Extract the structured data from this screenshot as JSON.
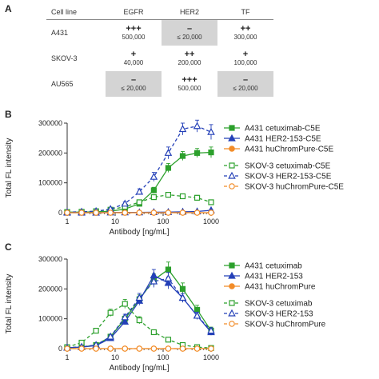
{
  "panel_a": {
    "letter": "A",
    "headers": [
      "Cell line",
      "EGFR",
      "HER2",
      "TF"
    ],
    "rows": [
      {
        "cell_line": "A431",
        "cells": [
          {
            "symbol": "+++",
            "value": "500,000",
            "shaded": false
          },
          {
            "symbol": "–",
            "value": "≤ 20,000",
            "shaded": true
          },
          {
            "symbol": "++",
            "value": "300,000",
            "shaded": false
          }
        ]
      },
      {
        "cell_line": "SKOV-3",
        "cells": [
          {
            "symbol": "+",
            "value": "40,000",
            "shaded": false
          },
          {
            "symbol": "++",
            "value": "200,000",
            "shaded": false
          },
          {
            "symbol": "+",
            "value": "100,000",
            "shaded": false
          }
        ]
      },
      {
        "cell_line": "AU565",
        "cells": [
          {
            "symbol": "–",
            "value": "≤ 20,000",
            "shaded": true
          },
          {
            "symbol": "+++",
            "value": "500,000",
            "shaded": false
          },
          {
            "symbol": "–",
            "value": "≤ 20,000",
            "shaded": true
          }
        ]
      }
    ]
  },
  "colors": {
    "green": "#2ca02c",
    "blue": "#2440b8",
    "orange": "#f28c28"
  },
  "chart_data": [
    {
      "panel": "B",
      "type": "line",
      "xlabel": "Antibody [ng/mL]",
      "ylabel": "Total FL intensity",
      "x_scale": "log",
      "xlim": [
        1,
        1000
      ],
      "ylim": [
        0,
        300000
      ],
      "x_ticks": [
        1,
        10,
        100,
        1000
      ],
      "x_tick_labels": [
        "1",
        "10",
        "100",
        "1000"
      ],
      "y_ticks": [
        0,
        100000,
        200000,
        300000
      ],
      "y_tick_labels": [
        "0",
        "100000",
        "200000",
        "300000"
      ],
      "x": [
        1,
        2,
        4,
        8,
        16,
        32,
        64,
        128,
        256,
        512,
        1000
      ],
      "legend_position": "right",
      "series": [
        {
          "name": "A431 cetuximab-C5E",
          "color": "green",
          "marker": "square",
          "filled": true,
          "dashed": false,
          "values": [
            2000,
            2000,
            3000,
            5000,
            12000,
            30000,
            75000,
            150000,
            190000,
            200000,
            202000
          ],
          "errors": [
            1000,
            1000,
            1000,
            2000,
            3000,
            6000,
            10000,
            15000,
            15000,
            15000,
            18000
          ]
        },
        {
          "name": "A431 HER2-153-C5E",
          "color": "blue",
          "marker": "triangle",
          "filled": true,
          "dashed": false,
          "values": [
            0,
            0,
            0,
            500,
            1000,
            1000,
            1500,
            2000,
            3000,
            4000,
            8000
          ],
          "errors": [
            500,
            500,
            500,
            500,
            500,
            500,
            1000,
            1000,
            1000,
            2000,
            3000
          ]
        },
        {
          "name": "A431 huChromPure-C5E",
          "color": "orange",
          "marker": "circle",
          "filled": true,
          "dashed": false,
          "values": [
            0,
            0,
            0,
            0,
            0,
            0,
            0,
            0,
            0,
            0,
            0
          ],
          "errors": [
            0,
            0,
            0,
            0,
            0,
            0,
            0,
            0,
            0,
            0,
            0
          ]
        },
        {
          "name": "SKOV-3 cetuximab-C5E",
          "color": "green",
          "marker": "square",
          "filled": false,
          "dashed": true,
          "values": [
            2000,
            3000,
            5000,
            10000,
            20000,
            35000,
            52000,
            60000,
            55000,
            50000,
            35000
          ],
          "errors": [
            1000,
            1000,
            2000,
            3000,
            4000,
            6000,
            8000,
            8000,
            8000,
            8000,
            6000
          ]
        },
        {
          "name": "SKOV-3 HER2-153-C5E",
          "color": "blue",
          "marker": "triangle",
          "filled": false,
          "dashed": true,
          "values": [
            2000,
            3000,
            5000,
            12000,
            30000,
            70000,
            120000,
            200000,
            280000,
            290000,
            270000
          ],
          "errors": [
            1000,
            1000,
            2000,
            3000,
            6000,
            10000,
            15000,
            20000,
            20000,
            20000,
            25000
          ]
        },
        {
          "name": "SKOV-3 huChromPure-C5E",
          "color": "orange",
          "marker": "circle",
          "filled": false,
          "dashed": true,
          "values": [
            0,
            0,
            0,
            0,
            0,
            0,
            0,
            0,
            0,
            0,
            0
          ],
          "errors": [
            0,
            0,
            0,
            0,
            0,
            0,
            0,
            0,
            0,
            0,
            0
          ]
        }
      ]
    },
    {
      "panel": "C",
      "type": "line",
      "xlabel": "Antibody [ng/mL]",
      "ylabel": "Total FL intensity",
      "x_scale": "log",
      "xlim": [
        1,
        1000
      ],
      "ylim": [
        0,
        300000
      ],
      "x_ticks": [
        1,
        10,
        100,
        1000
      ],
      "x_tick_labels": [
        "1",
        "10",
        "100",
        "1000"
      ],
      "y_ticks": [
        0,
        100000,
        200000,
        300000
      ],
      "y_tick_labels": [
        "0",
        "100000",
        "200000",
        "300000"
      ],
      "x": [
        1,
        2,
        4,
        8,
        16,
        32,
        64,
        128,
        256,
        512,
        1000
      ],
      "legend_position": "right",
      "series": [
        {
          "name": "A431 cetuximab",
          "color": "green",
          "marker": "square",
          "filled": true,
          "dashed": false,
          "values": [
            3000,
            5000,
            12000,
            40000,
            100000,
            165000,
            230000,
            265000,
            200000,
            130000,
            60000
          ],
          "errors": [
            1000,
            2000,
            3000,
            6000,
            10000,
            15000,
            20000,
            25000,
            20000,
            15000,
            12000
          ]
        },
        {
          "name": "A431 HER2-153",
          "color": "blue",
          "marker": "triangle",
          "filled": true,
          "dashed": false,
          "values": [
            3000,
            5000,
            10000,
            35000,
            90000,
            160000,
            245000,
            220000,
            170000,
            110000,
            55000
          ],
          "errors": [
            1000,
            2000,
            3000,
            6000,
            10000,
            15000,
            20000,
            20000,
            15000,
            12000,
            10000
          ]
        },
        {
          "name": "A431 huChromPure",
          "color": "orange",
          "marker": "circle",
          "filled": true,
          "dashed": false,
          "values": [
            0,
            0,
            0,
            0,
            0,
            0,
            0,
            0,
            0,
            0,
            0
          ],
          "errors": [
            0,
            0,
            0,
            0,
            0,
            0,
            0,
            0,
            0,
            0,
            0
          ]
        },
        {
          "name": "SKOV-3 cetuximab",
          "color": "green",
          "marker": "square",
          "filled": false,
          "dashed": true,
          "values": [
            5000,
            20000,
            60000,
            120000,
            150000,
            95000,
            55000,
            30000,
            12000,
            5000,
            2000
          ],
          "errors": [
            2000,
            4000,
            8000,
            12000,
            15000,
            12000,
            8000,
            5000,
            3000,
            2000,
            1000
          ]
        },
        {
          "name": "SKOV-3 HER2-153",
          "color": "blue",
          "marker": "triangle",
          "filled": false,
          "dashed": true,
          "values": [
            3000,
            6000,
            12000,
            40000,
            105000,
            170000,
            225000,
            235000,
            170000,
            110000,
            60000
          ],
          "errors": [
            1000,
            2000,
            3000,
            6000,
            10000,
            15000,
            20000,
            20000,
            15000,
            12000,
            10000
          ]
        },
        {
          "name": "SKOV-3 huChromPure",
          "color": "orange",
          "marker": "circle",
          "filled": false,
          "dashed": true,
          "values": [
            0,
            0,
            0,
            0,
            0,
            0,
            0,
            0,
            0,
            0,
            0
          ],
          "errors": [
            0,
            0,
            0,
            0,
            0,
            0,
            0,
            0,
            0,
            0,
            0
          ]
        }
      ]
    }
  ]
}
